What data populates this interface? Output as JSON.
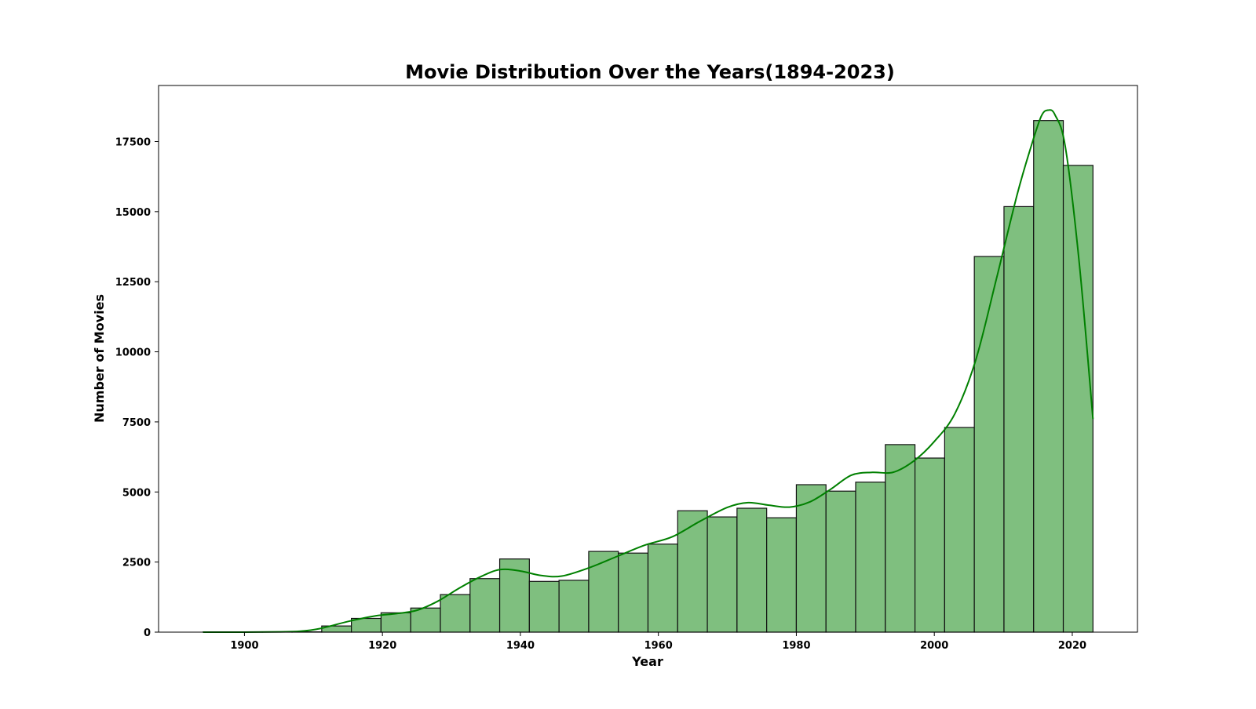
{
  "chart_data": {
    "type": "bar",
    "title": "Movie Distribution Over the Years(1894-2023)",
    "xlabel": "Year",
    "ylabel": "Number of Movies",
    "xlim": [
      1887.55,
      2029.45
    ],
    "ylim": [
      0,
      19500
    ],
    "x_ticks": [
      1900,
      1920,
      1940,
      1960,
      1980,
      2000,
      2020
    ],
    "x_tick_labels": [
      "1900",
      "1920",
      "1940",
      "1960",
      "1980",
      "2000",
      "2020"
    ],
    "y_ticks": [
      0,
      2500,
      5000,
      7500,
      10000,
      12500,
      15000,
      17500
    ],
    "y_tick_labels": [
      "0",
      "2500",
      "5000",
      "7500",
      "10000",
      "12500",
      "15000",
      "17500"
    ],
    "grid": false,
    "bin_edges": [
      1894,
      1898.3,
      1902.6,
      1906.9,
      1911.2,
      1915.5,
      1919.8,
      1924.1,
      1928.4,
      1932.7,
      1937.0,
      1941.3,
      1945.6,
      1949.9,
      1954.2,
      1958.5,
      1962.8,
      1967.1,
      1971.4,
      1975.7,
      1980.0,
      1984.3,
      1988.6,
      1992.9,
      1997.2,
      2001.5,
      2005.8,
      2010.1,
      2014.4,
      2018.7,
      2023.0
    ],
    "values": [
      5,
      5,
      5,
      10,
      220,
      490,
      690,
      860,
      1340,
      1910,
      2610,
      1810,
      1850,
      2880,
      2820,
      3140,
      4330,
      4110,
      4420,
      4080,
      5260,
      5030,
      5350,
      6690,
      6210,
      7300,
      13400,
      15180,
      18250,
      16650
    ],
    "kde": {
      "x": [
        1894,
        1900,
        1905,
        1908,
        1911,
        1915,
        1919,
        1922,
        1925,
        1928,
        1931,
        1934,
        1937,
        1940,
        1943,
        1946,
        1950,
        1954,
        1958,
        1962,
        1966,
        1970,
        1973,
        1976,
        1979,
        1982,
        1985,
        1988,
        1991,
        1994,
        1997,
        2000,
        2003,
        2006,
        2009,
        2012,
        2014,
        2015.5,
        2016.5,
        2017.5,
        2019,
        2021,
        2023
      ],
      "y": [
        0,
        0,
        10,
        30,
        130,
        380,
        580,
        660,
        780,
        1100,
        1550,
        1950,
        2230,
        2180,
        2020,
        2000,
        2300,
        2700,
        3100,
        3400,
        3950,
        4450,
        4620,
        4530,
        4460,
        4650,
        5100,
        5600,
        5700,
        5700,
        6100,
        6800,
        7800,
        9700,
        12600,
        15600,
        17300,
        18400,
        18620,
        18450,
        17300,
        13200,
        7600
      ]
    },
    "colors": {
      "bar_fill": "#7fbf7f",
      "bar_edge": "#111111",
      "kde_line": "#008000"
    }
  }
}
